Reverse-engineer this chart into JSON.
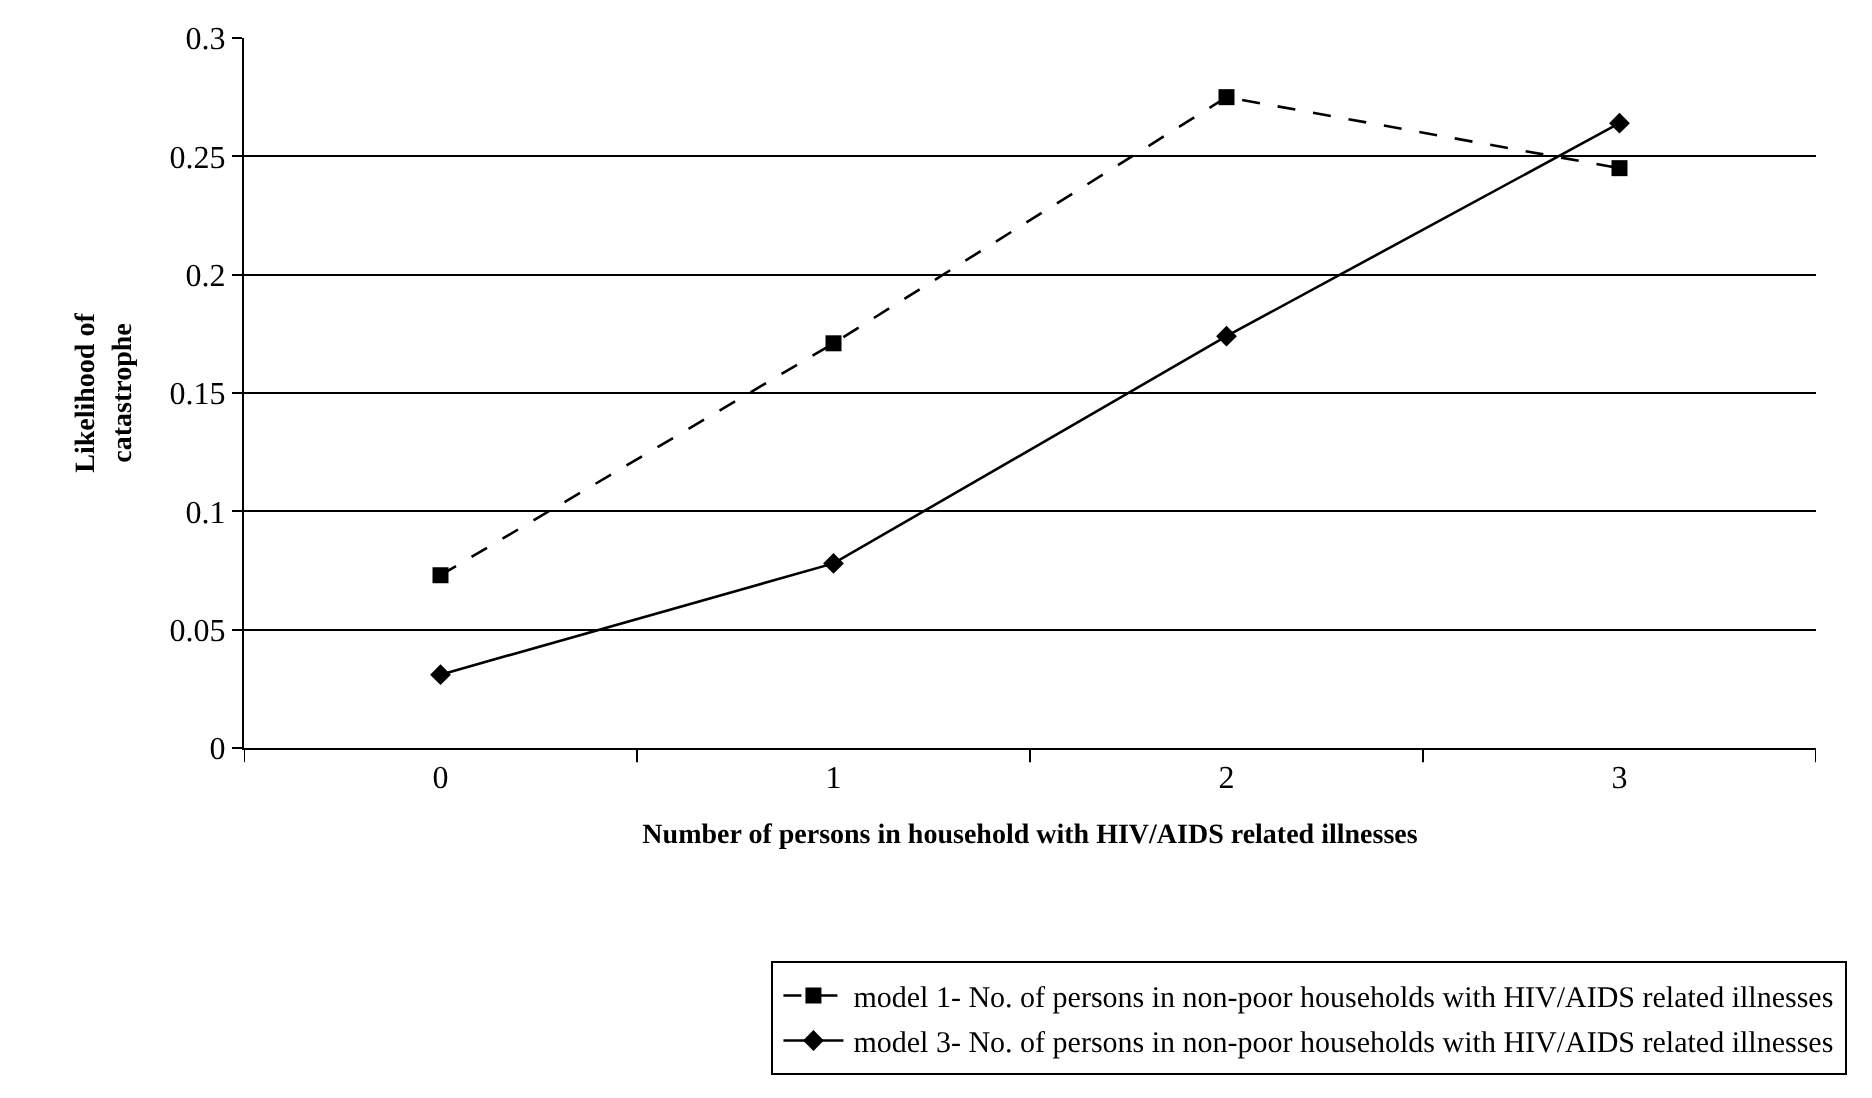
{
  "chart_data": {
    "type": "line",
    "xlabel": "Number of persons in household with HIV/AIDS related illnesses",
    "ylabel": "Likelihood of catastrophe",
    "categories": [
      "0",
      "1",
      "2",
      "3"
    ],
    "series": [
      {
        "name": "model 1- No. of persons in non-poor households with HIV/AIDS related illnesses",
        "color": "#000000",
        "values": [
          0.073,
          0.171,
          0.275,
          0.245
        ],
        "marker": "square",
        "line_style": "dashed"
      },
      {
        "name": "model 3- No. of persons in non-poor households with HIV/AIDS related illnesses",
        "color": "#000000",
        "values": [
          0.031,
          0.078,
          0.174,
          0.264
        ],
        "marker": "diamond",
        "line_style": "solid"
      }
    ],
    "ylim": [
      0,
      0.3
    ],
    "yticks": [
      0,
      0.05,
      0.1,
      0.15,
      0.2,
      0.25,
      0.3
    ],
    "grid": "y",
    "legend": "bottom"
  }
}
